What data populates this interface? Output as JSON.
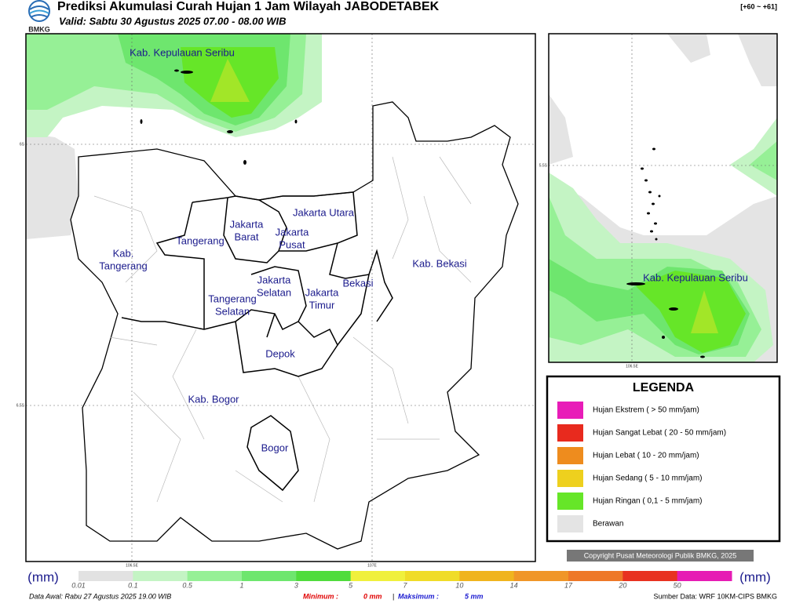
{
  "header": {
    "logo": "BMKG",
    "title": "Prediksi Akumulasi Curah Hujan 1 Jam Wilayah JABODETABEK",
    "subtitle": "Valid: Sabtu 30 Agustus 2025 07.00 - 08.00 WIB",
    "code": "[+60 ~ +61]"
  },
  "map": {
    "labels": [
      [
        "Kab. Kepulauan Seribu"
      ],
      [
        "Jakarta Utara"
      ],
      [
        "Jakarta",
        "Barat"
      ],
      [
        "Jakarta",
        "Pusat"
      ],
      [
        "Tangerang"
      ],
      [
        "Kab.",
        "Tangerang"
      ],
      [
        "Jakarta",
        "Selatan"
      ],
      [
        "Jakarta",
        "Timur"
      ],
      [
        "Bekasi"
      ],
      [
        "Kab. Bekasi"
      ],
      [
        "Tangerang",
        "Selatan"
      ],
      [
        "Depok"
      ],
      [
        "Kab. Bogor"
      ],
      [
        "Bogor"
      ]
    ],
    "lat_labels": [
      "6S",
      "6.5S"
    ],
    "lon_labels": [
      "106.5E",
      "107E"
    ]
  },
  "inset": {
    "label": "Kab. Kepulauan Seribu",
    "lat_label": "5.5S",
    "lon_label": "106.5E"
  },
  "legend": {
    "title": "LEGENDA",
    "items": [
      {
        "label": "Hujan Ekstrem ( > 50 mm/jam)",
        "color": "#e81cb8"
      },
      {
        "label": "Hujan Sangat Lebat ( 20 - 50 mm/jam)",
        "color": "#e82a1e"
      },
      {
        "label": "Hujan Lebat ( 10 - 20 mm/jam)",
        "color": "#ee8c1e"
      },
      {
        "label": "Hujan Sedang ( 5 - 10 mm/jam)",
        "color": "#eed01e"
      },
      {
        "label": "Hujan Ringan ( 0,1 - 5 mm/jam)",
        "color": "#66e628"
      },
      {
        "label": "Berawan",
        "color": "#e4e4e4"
      }
    ]
  },
  "copyright": "Copyright Pusat Meteorologi Publik BMKG, 2025",
  "colorbar": {
    "unit": "(mm)",
    "ticks": [
      0.01,
      0.1,
      0.5,
      1,
      3,
      5,
      7,
      10,
      14,
      17,
      20,
      50
    ],
    "colors": [
      "#e2e2e2",
      "#c4f4c4",
      "#96f096",
      "#6ee66e",
      "#50dc3c",
      "#f0f03c",
      "#f0dc28",
      "#f0b41e",
      "#f09628",
      "#ee7828",
      "#e83220",
      "#e61cb4"
    ]
  },
  "footer": {
    "data_awal": "Data Awal: Rabu 27 Agustus 2025 19.00 WIB",
    "min_label": "Minimum :",
    "min_value": "0 mm",
    "separator": "|",
    "max_label": "Maksimum :",
    "max_value": "5 mm",
    "source": "Sumber Data: WRF 10KM-CIPS BMKG"
  }
}
